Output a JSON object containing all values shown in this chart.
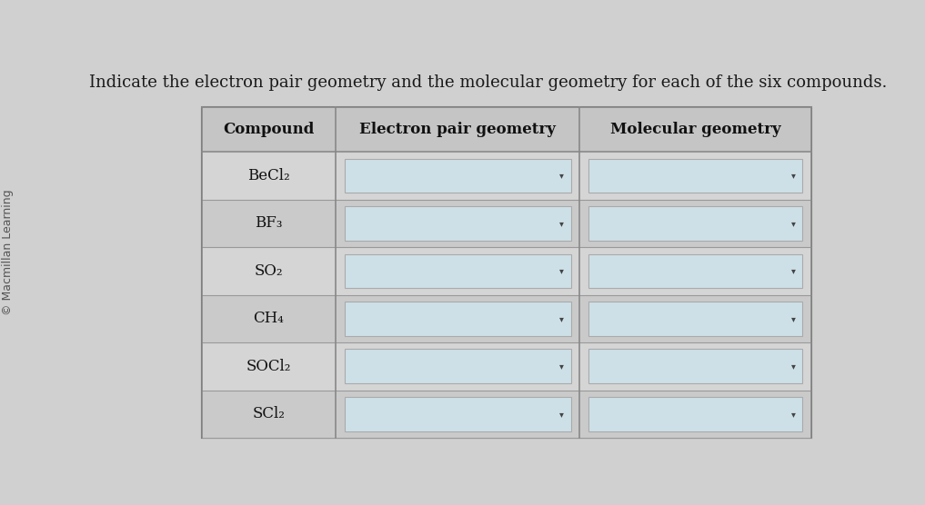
{
  "title": "Indicate the electron pair geometry and the molecular geometry for each of the six compounds.",
  "watermark": "© Macmillan Learning",
  "col_headers": [
    "Compound",
    "Electron pair geometry",
    "Molecular geometry"
  ],
  "compounds": [
    "BeCl₂",
    "BF₃",
    "SO₂",
    "CH₄",
    "SOCl₂",
    "SCl₂"
  ],
  "bg_color": "#d0d0d0",
  "title_fontsize": 13,
  "header_fontsize": 12,
  "compound_fontsize": 12,
  "watermark_fontsize": 9,
  "fig_width": 10.17,
  "fig_height": 5.56,
  "dropdown_color": "#cde0e8",
  "dropdown_border": "#aaaaaa",
  "col_props": [
    0.22,
    0.4,
    0.38
  ]
}
